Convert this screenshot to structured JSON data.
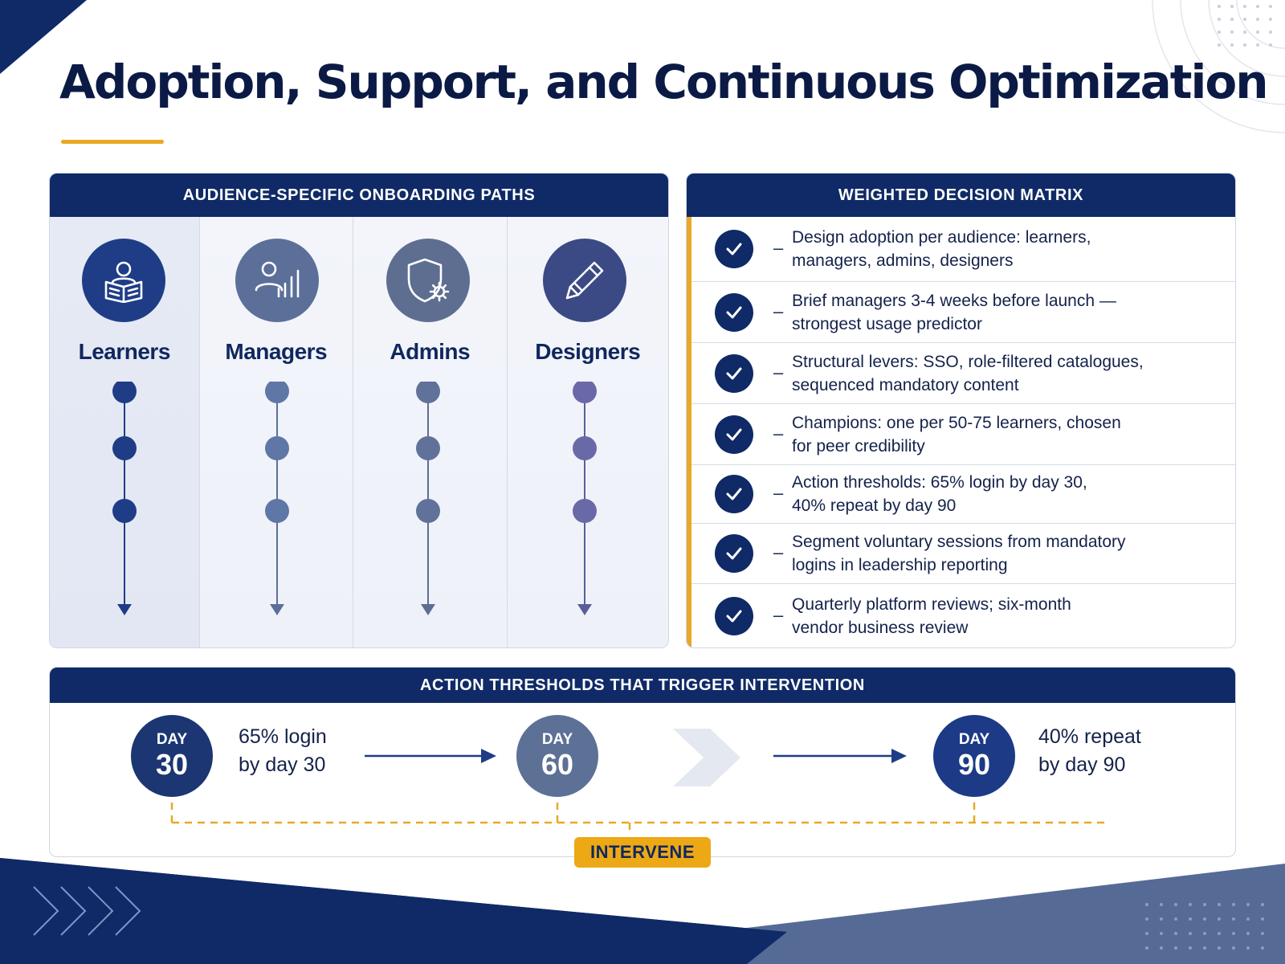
{
  "title": "Adoption, Support, and Continuous Optimization",
  "onboarding": {
    "header": "AUDIENCE-SPECIFIC ONBOARDING PATHS",
    "paths": [
      {
        "label": "Learners",
        "icon": "learner-reading-icon",
        "color": "#1f3d86",
        "steps": 3
      },
      {
        "label": "Managers",
        "icon": "manager-chart-icon",
        "color": "#5b6f98",
        "steps": 3
      },
      {
        "label": "Admins",
        "icon": "shield-gear-icon",
        "color": "#5d6e91",
        "steps": 3
      },
      {
        "label": "Designers",
        "icon": "pencil-icon",
        "color": "#3b4a84",
        "steps": 3
      }
    ]
  },
  "matrix": {
    "header": "WEIGHTED DECISION MATRIX",
    "rows": [
      {
        "line1": "Design adoption per audience: learners,",
        "line2": "managers, admins, designers"
      },
      {
        "line1": "Brief managers 3-4 weeks before launch —",
        "line2": "strongest usage predictor"
      },
      {
        "line1": "Structural levers: SSO, role-filtered catalogues,",
        "line2": "sequenced mandatory content"
      },
      {
        "line1": "Champions: one per 50-75 learners, chosen",
        "line2": "for peer credibility"
      },
      {
        "line1": "Action thresholds: 65% login by day 30,",
        "line2": "40% repeat by day 90"
      },
      {
        "line1": "Segment voluntary sessions from mandatory",
        "line2": "logins in leadership reporting"
      },
      {
        "line1": "Quarterly platform reviews; six-month",
        "line2": "vendor business review"
      }
    ]
  },
  "thresholds": {
    "header": "ACTION THRESHOLDS THAT TRIGGER INTERVENTION",
    "days": [
      {
        "word": "DAY",
        "num": "30",
        "color": "#1b3672"
      },
      {
        "word": "DAY",
        "num": "60",
        "color": "#5d7096"
      },
      {
        "word": "DAY",
        "num": "90",
        "color": "#1c3a86"
      }
    ],
    "metric_30": {
      "line1": "65% login",
      "line2": "by day 30"
    },
    "metric_90": {
      "line1": "40% repeat",
      "line2": "by day 90"
    },
    "intervene_label": "INTERVENE",
    "accent_color": "#e9a825"
  }
}
